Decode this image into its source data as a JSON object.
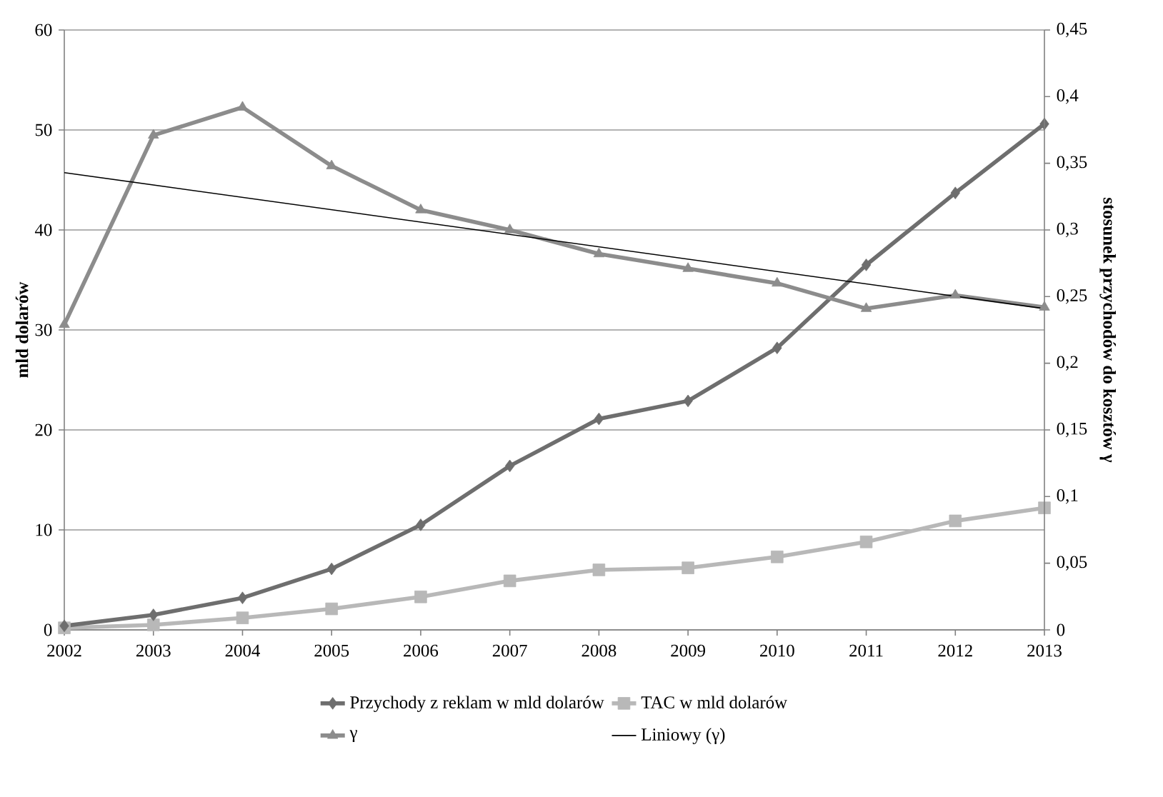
{
  "chart_data": {
    "type": "line",
    "x": [
      2002,
      2003,
      2004,
      2005,
      2006,
      2007,
      2008,
      2009,
      2010,
      2011,
      2012,
      2013
    ],
    "xlim": [
      2002,
      2013
    ],
    "xticks": [
      2002,
      2003,
      2004,
      2005,
      2006,
      2007,
      2008,
      2009,
      2010,
      2011,
      2012,
      2013
    ],
    "ylim": [
      0,
      60
    ],
    "yticks": [
      0,
      10,
      20,
      30,
      40,
      50,
      60
    ],
    "y2lim": [
      0,
      0.45
    ],
    "y2ticks": [
      {
        "value": 0,
        "label": "0"
      },
      {
        "value": 0.05,
        "label": "0,05"
      },
      {
        "value": 0.1,
        "label": "0,1"
      },
      {
        "value": 0.15,
        "label": "0,15"
      },
      {
        "value": 0.2,
        "label": "0,2"
      },
      {
        "value": 0.25,
        "label": "0,25"
      },
      {
        "value": 0.3,
        "label": "0,3"
      },
      {
        "value": 0.35,
        "label": "0,35"
      },
      {
        "value": 0.4,
        "label": "0,4"
      },
      {
        "value": 0.45,
        "label": "0,45"
      }
    ],
    "ylabel": "mld dolarów",
    "y2label": "stosunek przychodów do kosztów γ",
    "grid": "y",
    "legend": "bottom",
    "series": [
      {
        "name": "Przychody z reklam w mld dolarów",
        "color": "#6e6e6e",
        "marker": "diamond",
        "values": [
          0.4,
          1.5,
          3.2,
          6.1,
          10.5,
          16.4,
          21.1,
          22.9,
          28.2,
          36.5,
          43.7,
          50.6
        ]
      },
      {
        "name": "TAC w mld dolarów",
        "color": "#b8b8b8",
        "marker": "square",
        "values": [
          0.2,
          0.5,
          1.2,
          2.1,
          3.3,
          4.9,
          6.0,
          6.2,
          7.3,
          8.8,
          10.9,
          12.2
        ]
      },
      {
        "name": "γ",
        "color": "#8c8c8c",
        "marker": "triangle",
        "axis": "y2",
        "values": [
          0.229,
          0.371,
          0.392,
          0.348,
          0.315,
          0.3,
          0.282,
          0.271,
          0.26,
          0.241,
          0.251,
          0.242
        ]
      },
      {
        "name": "Liniowy (γ)",
        "color": "#000000",
        "marker": "none",
        "axis": "y2",
        "x": [
          2002,
          2013
        ],
        "values": [
          0.343,
          0.241
        ]
      }
    ]
  }
}
